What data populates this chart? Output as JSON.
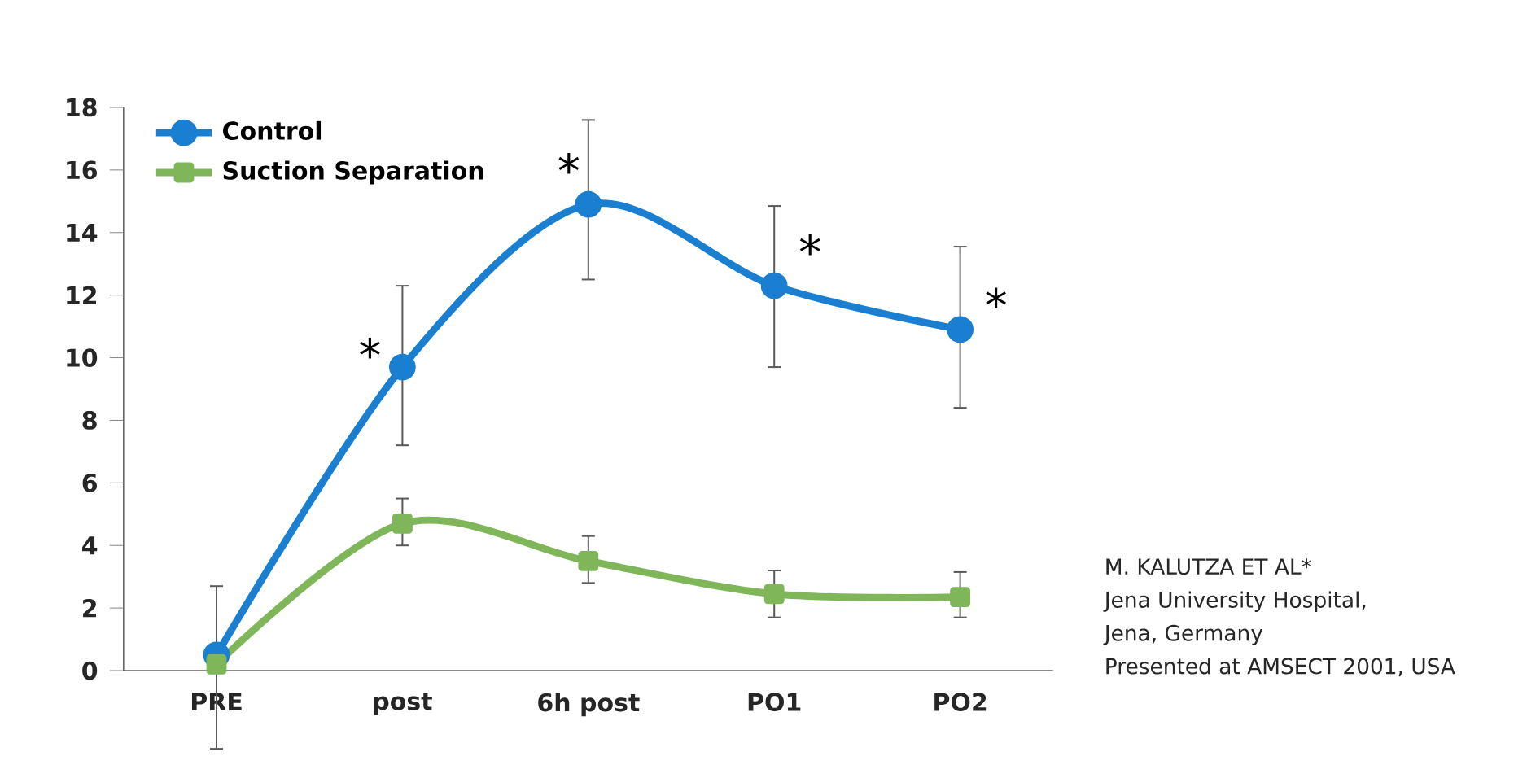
{
  "chart_data": {
    "type": "line",
    "categories": [
      "PRE",
      "post",
      "6h post",
      "PO1",
      "PO2"
    ],
    "series": [
      {
        "name": "Control",
        "color": "#1a7fd0",
        "marker": "circle",
        "values": [
          0.5,
          9.7,
          14.9,
          12.3,
          10.9
        ],
        "errors": [
          [
            -2.5,
            2.7
          ],
          [
            7.2,
            12.3
          ],
          [
            12.5,
            17.6
          ],
          [
            9.7,
            14.85
          ],
          [
            8.4,
            13.55
          ]
        ]
      },
      {
        "name": "Suction Separation",
        "color": "#7fb65a",
        "marker": "square",
        "values": [
          0.2,
          4.7,
          3.5,
          2.45,
          2.35
        ],
        "errors": [
          null,
          [
            4.0,
            5.5
          ],
          [
            2.8,
            4.3
          ],
          [
            1.7,
            3.2
          ],
          [
            1.7,
            3.15
          ]
        ]
      }
    ],
    "ylim": [
      0,
      18
    ],
    "yticks": [
      0,
      2,
      4,
      6,
      8,
      10,
      12,
      14,
      16,
      18
    ],
    "legend": "top left",
    "grid": false,
    "annotations": [
      {
        "text": "*",
        "x": "post",
        "y": 10.1
      },
      {
        "text": "*",
        "x": "6h post",
        "y": 16.0
      },
      {
        "text": "*",
        "x": "PO1",
        "y": 13.4
      },
      {
        "text": "*",
        "x": "PO2",
        "y": 11.7
      },
      "M. KALUTZA ET AL*",
      "Jena University Hospital,",
      "Jena, Germany",
      "Presented at AMSECT 2001, USA"
    ]
  }
}
